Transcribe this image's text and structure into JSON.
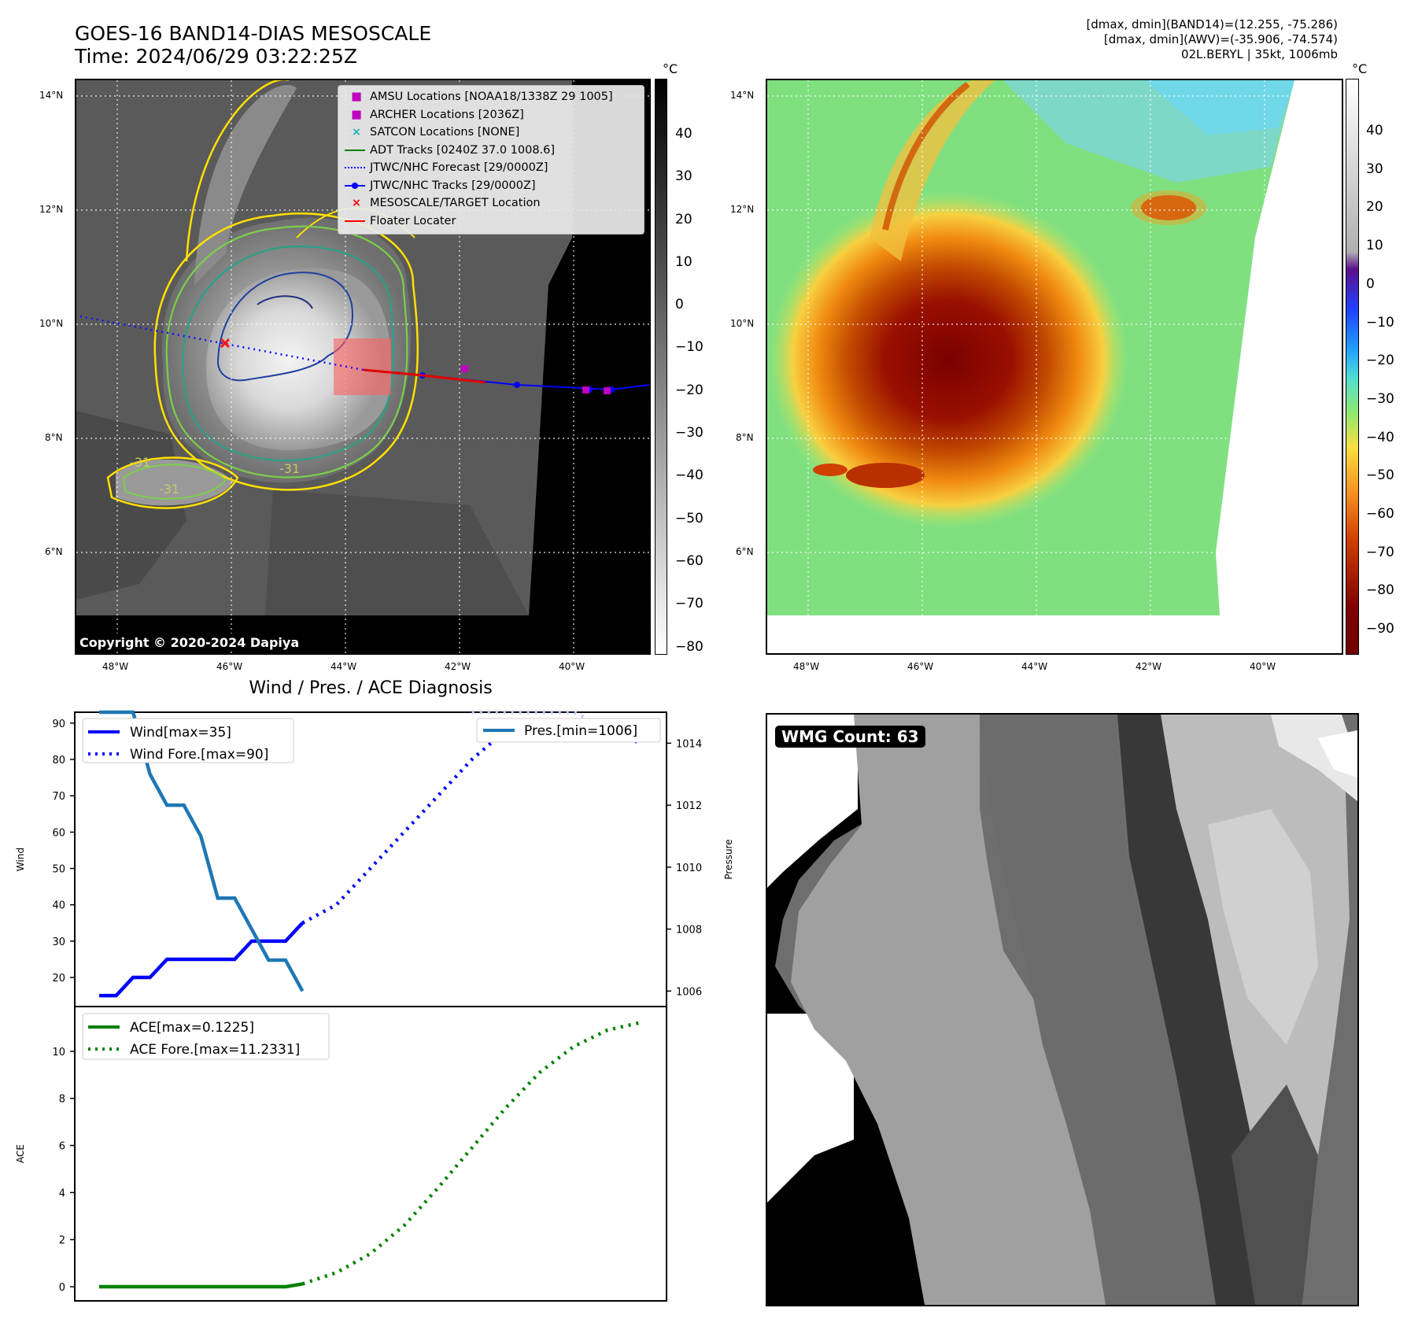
{
  "header": {
    "title_line1": "GOES-16 BAND14-DIAS MESOSCALE",
    "title_line2": "Time: 2024/06/29 03:22:25Z",
    "info_line1": "[dmax, dmin](BAND14)=(12.255, -75.286)",
    "info_line2": "[dmax, dmin](AWV)=(-35.906, -74.574)",
    "info_line3": "02L.BERYL | 35kt, 1006mb"
  },
  "map_left": {
    "lat_labels": [
      "14°N",
      "12°N",
      "10°N",
      "8°N",
      "6°N"
    ],
    "lon_labels": [
      "48°W",
      "46°W",
      "44°W",
      "42°W",
      "40°W"
    ],
    "copyright": "Copyright © 2020-2024 Dapiya",
    "contour_labels": [
      "-31",
      "-31",
      "-31"
    ],
    "legend": [
      {
        "label": "AMSU Locations [NOAA18/1338Z 29 1005]",
        "marker": "square",
        "color": "#c000c0"
      },
      {
        "label": "ARCHER Locations [2036Z]",
        "marker": "square",
        "color": "#c000c0"
      },
      {
        "label": "SATCON Locations [NONE]",
        "marker": "x",
        "color": "#20b0b0"
      },
      {
        "label": "ADT Tracks [0240Z 37.0 1008.6]",
        "marker": "line",
        "color": "#008000"
      },
      {
        "label": "JTWC/NHC Forecast [29/0000Z]",
        "marker": "dotted",
        "color": "#0000ff"
      },
      {
        "label": "JTWC/NHC Tracks [29/0000Z]",
        "marker": "line-dot",
        "color": "#0000ff"
      },
      {
        "label": "MESOSCALE/TARGET Location",
        "marker": "x",
        "color": "#ff0000"
      },
      {
        "label": "Floater Locater",
        "marker": "line",
        "color": "#ff0000"
      }
    ],
    "colorbar": {
      "unit": "°C",
      "ticks": [
        "40",
        "30",
        "20",
        "10",
        "0",
        "−10",
        "−20",
        "−30",
        "−40",
        "−50",
        "−60",
        "−70",
        "−80"
      ]
    }
  },
  "map_right": {
    "lat_labels": [
      "14°N",
      "12°N",
      "10°N",
      "8°N",
      "6°N"
    ],
    "lon_labels": [
      "48°W",
      "46°W",
      "44°W",
      "42°W",
      "40°W"
    ],
    "colorbar": {
      "unit": "°C",
      "ticks": [
        "40",
        "30",
        "20",
        "10",
        "0",
        "−10",
        "−20",
        "−30",
        "−40",
        "−50",
        "−60",
        "−70",
        "−80",
        "−90"
      ]
    }
  },
  "wmg": {
    "label": "WMG Count: 63"
  },
  "chart_data": [
    {
      "type": "line",
      "title": "Wind / Pres. / ACE Diagnosis",
      "ylabel": "Wind",
      "ylabel_right": "Pressure",
      "ylim": [
        12,
        93
      ],
      "ylim_right": [
        1005.5,
        1015.0
      ],
      "yticks": [
        20,
        30,
        40,
        50,
        60,
        70,
        80,
        90
      ],
      "yticks_right": [
        1006,
        1008,
        1010,
        1012,
        1014
      ],
      "x": [
        0,
        1,
        2,
        3,
        4,
        5,
        6,
        7,
        8,
        9,
        10,
        11,
        12,
        13,
        14,
        15,
        16,
        17,
        18,
        19,
        20,
        21,
        22,
        23,
        24,
        25,
        26,
        27,
        28,
        29,
        30,
        31,
        32
      ],
      "series": [
        {
          "name": "Wind[max=35]",
          "style": "solid",
          "color": "#0000ff",
          "axis": "left",
          "x": [
            0,
            1,
            2,
            3,
            4,
            5,
            6,
            7,
            8,
            9,
            10,
            11,
            12
          ],
          "values": [
            15,
            15,
            20,
            20,
            25,
            25,
            25,
            25,
            25,
            30,
            30,
            30,
            35
          ]
        },
        {
          "name": "Wind Fore.[max=90]",
          "style": "dotted",
          "color": "#0000ff",
          "axis": "left",
          "x": [
            12,
            14,
            16,
            18,
            20,
            22,
            24,
            26,
            28,
            30,
            32
          ],
          "values": [
            35,
            40,
            50,
            60,
            70,
            80,
            88,
            90,
            90,
            90,
            84
          ]
        },
        {
          "name": "Pres.[min=1006]",
          "style": "solid",
          "color": "#1f77b4",
          "axis": "right",
          "x": [
            0,
            1,
            2,
            3,
            4,
            5,
            6,
            7,
            8,
            9,
            10,
            11,
            12
          ],
          "values": [
            1015,
            1015,
            1015,
            1013,
            1012,
            1012,
            1011,
            1009,
            1009,
            1008,
            1007,
            1007,
            1006
          ]
        },
        {
          "name": "",
          "style": "dotted",
          "color": "#c0c8ff",
          "axis": "right",
          "x": [
            22,
            24,
            26,
            28,
            30
          ],
          "values": [
            1015,
            1015,
            1015,
            1015,
            1014.5
          ]
        }
      ]
    },
    {
      "type": "line",
      "ylabel": "ACE",
      "ylim": [
        -0.6,
        11.9
      ],
      "yticks": [
        0,
        2,
        4,
        6,
        8,
        10
      ],
      "series": [
        {
          "name": "ACE[max=0.1225]",
          "style": "solid",
          "color": "#008000",
          "x": [
            0,
            2,
            4,
            6,
            8,
            10,
            11,
            12
          ],
          "values": [
            0,
            0,
            0,
            0,
            0,
            0,
            0,
            0.12
          ]
        },
        {
          "name": "ACE Fore.[max=11.2331]",
          "style": "dotted",
          "color": "#008000",
          "x": [
            12,
            14,
            16,
            18,
            20,
            22,
            24,
            26,
            28,
            30,
            32
          ],
          "values": [
            0.12,
            0.6,
            1.4,
            2.6,
            4.2,
            5.9,
            7.6,
            9.1,
            10.2,
            10.9,
            11.23
          ]
        }
      ]
    }
  ]
}
